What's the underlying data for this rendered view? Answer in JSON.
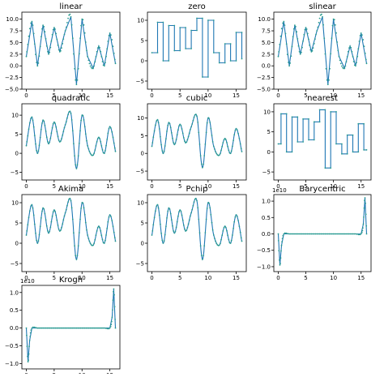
{
  "figure": {
    "style": {
      "line_color": "#1f77b4",
      "marker_color": "#2a9d8f",
      "axes_color": "#000000",
      "text_color": "#000000",
      "background": "#ffffff"
    }
  },
  "chart_data": [
    {
      "type": "line",
      "title": "linear",
      "interp": "linear",
      "x": [
        0,
        1,
        2,
        3,
        4,
        5,
        6,
        7,
        8,
        9,
        10,
        11,
        12,
        13,
        14,
        15,
        16
      ],
      "y": [
        2.0,
        9.5,
        0.0,
        8.7,
        2.5,
        8.2,
        3.0,
        7.5,
        10.5,
        -4.0,
        10.0,
        2.0,
        -0.5,
        4.2,
        0.0,
        7.0,
        0.5
      ],
      "xlim": [
        -0.8,
        16.8
      ],
      "ylim": [
        -5.0,
        11.5
      ],
      "xticks": [
        0,
        5,
        10,
        15
      ],
      "xticklabels": [
        "0",
        "5",
        "10",
        "15"
      ],
      "yticks": [
        -5,
        -2.5,
        0,
        2.5,
        5,
        7.5,
        10
      ],
      "yticklabels": [
        "−5.0",
        "−2.5",
        "0.0",
        "2.5",
        "5.0",
        "7.5",
        "10.0"
      ]
    },
    {
      "type": "line",
      "title": "zero",
      "interp": "zero",
      "x": [
        0,
        1,
        2,
        3,
        4,
        5,
        6,
        7,
        8,
        9,
        10,
        11,
        12,
        13,
        14,
        15,
        16
      ],
      "y": [
        2.0,
        9.5,
        0.0,
        8.7,
        2.5,
        8.2,
        3.0,
        7.5,
        10.5,
        -4.0,
        10.0,
        2.0,
        -0.5,
        4.2,
        0.0,
        7.0,
        0.5
      ],
      "xlim": [
        -0.8,
        16.8
      ],
      "ylim": [
        -7.0,
        12.0
      ],
      "xticks": [
        0,
        5,
        10,
        15
      ],
      "xticklabels": [
        "0",
        "5",
        "10",
        "15"
      ],
      "yticks": [
        -5,
        0,
        5,
        10
      ],
      "yticklabels": [
        "−5",
        "0",
        "5",
        "10"
      ]
    },
    {
      "type": "line",
      "title": "slinear",
      "interp": "linear",
      "x": [
        0,
        1,
        2,
        3,
        4,
        5,
        6,
        7,
        8,
        9,
        10,
        11,
        12,
        13,
        14,
        15,
        16
      ],
      "y": [
        2.0,
        9.5,
        0.0,
        8.7,
        2.5,
        8.2,
        3.0,
        7.5,
        10.5,
        -4.0,
        10.0,
        2.0,
        -0.5,
        4.2,
        0.0,
        7.0,
        0.5
      ],
      "xlim": [
        -0.8,
        16.8
      ],
      "ylim": [
        -5.0,
        11.5
      ],
      "xticks": [
        0,
        5,
        10,
        15
      ],
      "xticklabels": [
        "0",
        "5",
        "10",
        "15"
      ],
      "yticks": [
        -5,
        -2.5,
        0,
        2.5,
        5,
        7.5,
        10
      ],
      "yticklabels": [
        "−5.0",
        "−2.5",
        "0.0",
        "2.5",
        "5.0",
        "7.5",
        "10.0"
      ]
    },
    {
      "type": "line",
      "title": "quadratic",
      "interp": "smooth",
      "x": [
        0,
        1,
        2,
        3,
        4,
        5,
        6,
        7,
        8,
        9,
        10,
        11,
        12,
        13,
        14,
        15,
        16
      ],
      "y": [
        2.0,
        9.5,
        0.0,
        8.7,
        2.5,
        8.2,
        3.0,
        7.5,
        10.5,
        -4.0,
        10.0,
        2.0,
        -0.5,
        4.2,
        0.0,
        7.0,
        0.5
      ],
      "xlim": [
        -0.8,
        16.8
      ],
      "ylim": [
        -7.0,
        13.0
      ],
      "xticks": [
        0,
        5,
        10,
        15
      ],
      "xticklabels": [
        "0",
        "5",
        "10",
        "15"
      ],
      "yticks": [
        -5,
        0,
        5,
        10
      ],
      "yticklabels": [
        "−5",
        "0",
        "5",
        "10"
      ]
    },
    {
      "type": "line",
      "title": "cubic",
      "interp": "smooth",
      "x": [
        0,
        1,
        2,
        3,
        4,
        5,
        6,
        7,
        8,
        9,
        10,
        11,
        12,
        13,
        14,
        15,
        16
      ],
      "y": [
        2.0,
        9.5,
        0.0,
        8.7,
        2.5,
        8.2,
        3.0,
        7.5,
        10.5,
        -4.0,
        10.0,
        2.0,
        -0.5,
        4.2,
        0.0,
        7.0,
        0.5
      ],
      "xlim": [
        -0.8,
        16.8
      ],
      "ylim": [
        -7.5,
        14.0
      ],
      "xticks": [
        0,
        5,
        10,
        15
      ],
      "xticklabels": [
        "0",
        "5",
        "10",
        "15"
      ],
      "yticks": [
        -5,
        0,
        5,
        10
      ],
      "yticklabels": [
        "−5",
        "0",
        "5",
        "10"
      ]
    },
    {
      "type": "line",
      "title": "nearest",
      "interp": "nearest",
      "x": [
        0,
        1,
        2,
        3,
        4,
        5,
        6,
        7,
        8,
        9,
        10,
        11,
        12,
        13,
        14,
        15,
        16
      ],
      "y": [
        2.0,
        9.5,
        0.0,
        8.7,
        2.5,
        8.2,
        3.0,
        7.5,
        10.5,
        -4.0,
        10.0,
        2.0,
        -0.5,
        4.2,
        0.0,
        7.0,
        0.5
      ],
      "xlim": [
        -0.8,
        16.8
      ],
      "ylim": [
        -7.0,
        12.0
      ],
      "xticks": [
        0,
        5,
        10,
        15
      ],
      "xticklabels": [
        "0",
        "5",
        "10",
        "15"
      ],
      "yticks": [
        -5,
        0,
        5,
        10
      ],
      "yticklabels": [
        "−5",
        "0",
        "5",
        "10"
      ]
    },
    {
      "type": "line",
      "title": "Akima",
      "interp": "smooth",
      "x": [
        0,
        1,
        2,
        3,
        4,
        5,
        6,
        7,
        8,
        9,
        10,
        11,
        12,
        13,
        14,
        15,
        16
      ],
      "y": [
        2.0,
        9.5,
        0.0,
        8.7,
        2.5,
        8.2,
        3.0,
        7.5,
        10.5,
        -4.0,
        10.0,
        2.0,
        -0.5,
        4.2,
        0.0,
        7.0,
        0.5
      ],
      "xlim": [
        -0.8,
        16.8
      ],
      "ylim": [
        -7.0,
        12.0
      ],
      "xticks": [
        0,
        5,
        10,
        15
      ],
      "xticklabels": [
        "0",
        "5",
        "10",
        "15"
      ],
      "yticks": [
        -5,
        0,
        5,
        10
      ],
      "yticklabels": [
        "−5",
        "0",
        "5",
        "10"
      ]
    },
    {
      "type": "line",
      "title": "Pchip",
      "interp": "smooth",
      "x": [
        0,
        1,
        2,
        3,
        4,
        5,
        6,
        7,
        8,
        9,
        10,
        11,
        12,
        13,
        14,
        15,
        16
      ],
      "y": [
        2.0,
        9.5,
        0.0,
        8.7,
        2.5,
        8.2,
        3.0,
        7.5,
        10.5,
        -4.0,
        10.0,
        2.0,
        -0.5,
        4.2,
        0.0,
        7.0,
        0.5
      ],
      "xlim": [
        -0.8,
        16.8
      ],
      "ylim": [
        -7.0,
        12.0
      ],
      "xticks": [
        0,
        5,
        10,
        15
      ],
      "xticklabels": [
        "0",
        "5",
        "10",
        "15"
      ],
      "yticks": [
        -5,
        0,
        5,
        10
      ],
      "yticklabels": [
        "−5",
        "0",
        "5",
        "10"
      ]
    },
    {
      "type": "line",
      "title": "Barycentric",
      "interp": "linear",
      "offset_text": "1e10",
      "x": [
        0,
        0.3,
        0.6,
        1,
        2,
        3,
        4,
        5,
        6,
        7,
        8,
        9,
        10,
        11,
        12,
        13,
        14,
        15,
        15.4,
        15.7,
        16
      ],
      "y": [
        0.0,
        -0.95,
        -0.35,
        0.0,
        0.0,
        0.0,
        0.0,
        0.0,
        0.0,
        0.0,
        0.0,
        0.0,
        0.0,
        0.0,
        0.0,
        0.0,
        0.0,
        0.0,
        0.3,
        1.1,
        0.0
      ],
      "xlim": [
        -0.8,
        16.8
      ],
      "ylim": [
        -1.15,
        1.2
      ],
      "xticks": [
        0,
        5,
        10,
        15
      ],
      "xticklabels": [
        "0",
        "5",
        "10",
        "15"
      ],
      "yticks": [
        -1.0,
        -0.5,
        0.0,
        0.5,
        1.0
      ],
      "yticklabels": [
        "−1.0",
        "−0.5",
        "0.0",
        "0.5",
        "1.0"
      ]
    },
    {
      "type": "line",
      "title": "Krogh",
      "interp": "linear",
      "offset_text": "1e10",
      "x": [
        0,
        0.3,
        0.6,
        1,
        2,
        3,
        4,
        5,
        6,
        7,
        8,
        9,
        10,
        11,
        12,
        13,
        14,
        15,
        15.4,
        15.7,
        16
      ],
      "y": [
        0.0,
        -0.95,
        -0.35,
        0.0,
        0.0,
        0.0,
        0.0,
        0.0,
        0.0,
        0.0,
        0.0,
        0.0,
        0.0,
        0.0,
        0.0,
        0.0,
        0.0,
        0.0,
        0.3,
        1.1,
        0.0
      ],
      "xlim": [
        -0.8,
        16.8
      ],
      "ylim": [
        -1.15,
        1.2
      ],
      "xticks": [
        0,
        5,
        10,
        15
      ],
      "xticklabels": [
        "0",
        "5",
        "10",
        "15"
      ],
      "yticks": [
        -1.0,
        -0.5,
        0.0,
        0.5,
        1.0
      ],
      "yticklabels": [
        "−1.0",
        "−0.5",
        "0.0",
        "0.5",
        "1.0"
      ]
    }
  ]
}
